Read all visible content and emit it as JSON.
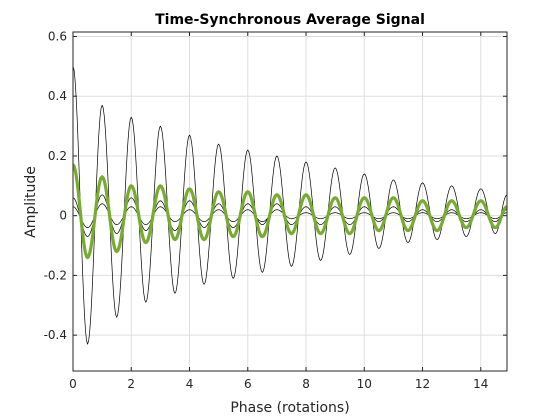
{
  "chart_data": {
    "type": "line",
    "title": "Time-Synchronous Average Signal",
    "xlabel": "Phase (rotations)",
    "ylabel": "Amplitude",
    "xlim": [
      0,
      14.9
    ],
    "ylim": [
      -0.52,
      0.615
    ],
    "x_ticks": [
      0,
      2,
      4,
      6,
      8,
      10,
      12,
      14
    ],
    "x_tick_labels": [
      "0",
      "2",
      "4",
      "6",
      "8",
      "10",
      "12",
      "14"
    ],
    "y_ticks": [
      -0.4,
      -0.2,
      0,
      0.2,
      0.4,
      0.6
    ],
    "y_tick_labels": [
      "-0.4",
      "-0.2",
      "0",
      "0.2",
      "0.4",
      "0.6"
    ],
    "grid": true,
    "legend": "none",
    "series": [
      {
        "color": "#000000",
        "line_width": 0.7,
        "x": [
          0.0,
          0.5,
          1.0,
          1.5,
          2.0,
          2.5,
          3.0,
          3.5,
          4.0,
          4.5,
          5.0,
          5.5,
          6.0,
          6.5,
          7.0,
          7.5,
          8.0,
          8.5,
          9.0,
          9.5,
          10.0,
          10.5,
          11.0,
          11.5,
          12.0,
          12.5,
          13.0,
          13.5,
          14.0,
          14.5,
          14.9
        ],
        "values": [
          0.5,
          -0.43,
          0.37,
          -0.34,
          0.33,
          -0.29,
          0.3,
          -0.26,
          0.27,
          -0.23,
          0.24,
          -0.21,
          0.22,
          -0.19,
          0.2,
          -0.17,
          0.18,
          -0.15,
          0.16,
          -0.13,
          0.14,
          -0.11,
          0.12,
          -0.09,
          0.11,
          -0.08,
          0.1,
          -0.07,
          0.09,
          -0.06,
          0.07
        ]
      },
      {
        "color": "#000000",
        "line_width": 0.7,
        "x": [
          0.0,
          0.5,
          1.0,
          1.5,
          2.0,
          2.5,
          3.0,
          3.5,
          4.0,
          4.5,
          5.0,
          5.5,
          6.0,
          6.5,
          7.0,
          7.5,
          8.0,
          8.5,
          9.0,
          9.5,
          10.0,
          10.5,
          11.0,
          11.5,
          12.0,
          12.5,
          13.0,
          13.5,
          14.0,
          14.5,
          14.9
        ],
        "values": [
          0.06,
          -0.07,
          0.07,
          -0.06,
          0.06,
          -0.05,
          0.05,
          -0.05,
          0.05,
          -0.04,
          0.04,
          -0.04,
          0.04,
          -0.03,
          0.04,
          -0.03,
          0.03,
          -0.03,
          0.03,
          -0.03,
          0.03,
          -0.02,
          0.03,
          -0.02,
          0.02,
          -0.02,
          0.02,
          -0.02,
          0.02,
          -0.02,
          0.02
        ]
      },
      {
        "color": "#000000",
        "line_width": 0.7,
        "x": [
          0.0,
          0.5,
          1.0,
          1.5,
          2.0,
          2.5,
          3.0,
          3.5,
          4.0,
          4.5,
          5.0,
          5.5,
          6.0,
          6.5,
          7.0,
          7.5,
          8.0,
          8.5,
          9.0,
          9.5,
          10.0,
          10.5,
          11.0,
          11.5,
          12.0,
          12.5,
          13.0,
          13.5,
          14.0,
          14.5,
          14.9
        ],
        "values": [
          0.03,
          -0.04,
          0.04,
          -0.03,
          0.03,
          -0.03,
          0.03,
          -0.02,
          0.02,
          -0.02,
          0.02,
          -0.02,
          0.02,
          -0.02,
          0.02,
          -0.01,
          0.01,
          -0.01,
          0.01,
          -0.01,
          0.01,
          -0.01,
          0.01,
          -0.01,
          0.01,
          -0.01,
          0.01,
          -0.01,
          0.01,
          -0.01,
          0.01
        ]
      },
      {
        "color": "#77ac30",
        "line_width": 3.2,
        "x": [
          0.0,
          0.5,
          1.0,
          1.5,
          2.0,
          2.5,
          3.0,
          3.5,
          4.0,
          4.5,
          5.0,
          5.5,
          6.0,
          6.5,
          7.0,
          7.5,
          8.0,
          8.5,
          9.0,
          9.5,
          10.0,
          10.5,
          11.0,
          11.5,
          12.0,
          12.5,
          13.0,
          13.5,
          14.0,
          14.5,
          14.9
        ],
        "values": [
          0.17,
          -0.14,
          0.13,
          -0.12,
          0.1,
          -0.09,
          0.1,
          -0.08,
          0.09,
          -0.08,
          0.08,
          -0.07,
          0.08,
          -0.07,
          0.07,
          -0.06,
          0.07,
          -0.06,
          0.06,
          -0.06,
          0.06,
          -0.05,
          0.06,
          -0.05,
          0.05,
          -0.05,
          0.05,
          -0.04,
          0.05,
          -0.04,
          0.03
        ]
      }
    ]
  }
}
